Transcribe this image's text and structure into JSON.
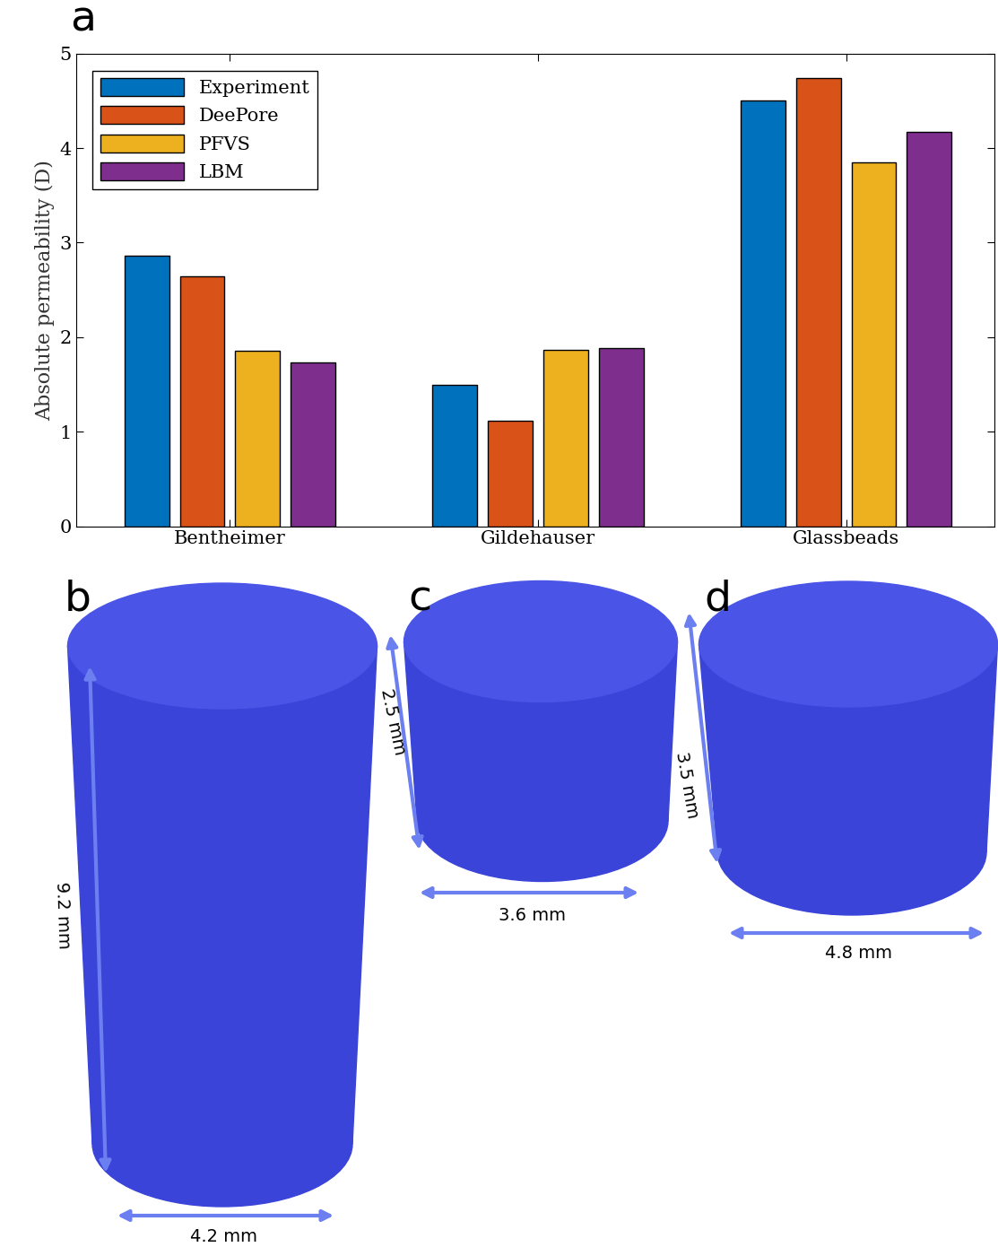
{
  "chart_data": {
    "type": "bar",
    "ylabel": "Absolute permeability (D)",
    "categories": [
      "Bentheimer",
      "Gildehauser",
      "Glassbeads"
    ],
    "series": [
      {
        "name": "Experiment",
        "color": "#0072BD",
        "values": [
          2.86,
          1.5,
          4.5
        ]
      },
      {
        "name": "DeePore",
        "color": "#D95319",
        "values": [
          2.64,
          1.12,
          4.74
        ]
      },
      {
        "name": "PFVS",
        "color": "#EDB120",
        "values": [
          1.86,
          1.87,
          3.85
        ]
      },
      {
        "name": "LBM",
        "color": "#7E2F8E",
        "values": [
          1.73,
          1.88,
          4.17
        ]
      }
    ],
    "ylim": [
      0,
      5
    ],
    "yticks": [
      0,
      1,
      2,
      3,
      4,
      5
    ],
    "legend": "upper left",
    "grid": false
  },
  "panel_labels": [
    "a",
    "b",
    "c",
    "d"
  ],
  "samples": [
    {
      "panel": "b",
      "height": "9.2 mm",
      "diameter": "4.2 mm"
    },
    {
      "panel": "c",
      "height": "2.5 mm",
      "diameter": "3.6 mm"
    },
    {
      "panel": "d",
      "height": "3.5 mm",
      "diameter": "4.8 mm"
    }
  ]
}
